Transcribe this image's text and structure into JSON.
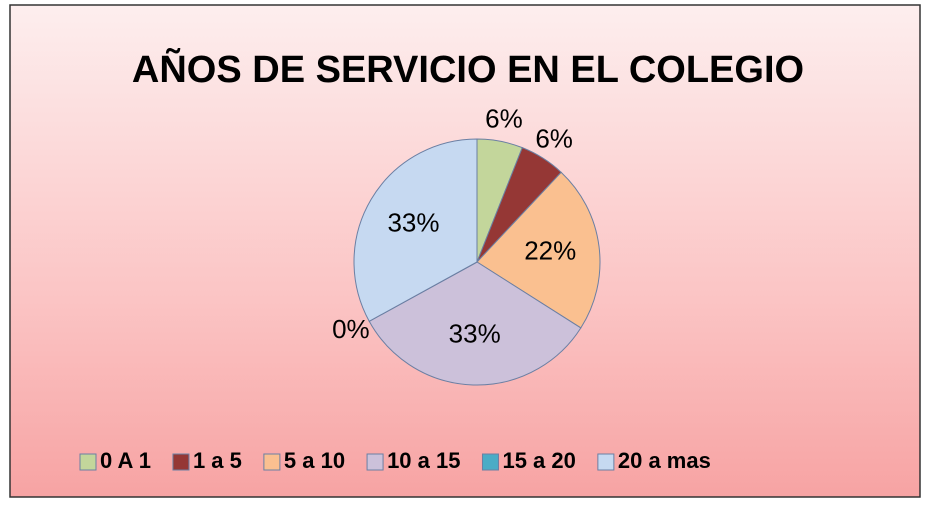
{
  "chart_data": {
    "type": "pie",
    "title": "AÑOS DE SERVICIO EN EL COLEGIO",
    "categories": [
      "0 A 1",
      "1 a 5",
      "5 a 10",
      "10 a 15",
      "15 a 20",
      "20 a mas"
    ],
    "values": [
      6,
      6,
      22,
      33,
      0,
      33
    ],
    "value_labels": [
      "6%",
      "6%",
      "22%",
      "33%",
      "0%",
      "33%"
    ],
    "colors": [
      "#c3d69b",
      "#953735",
      "#fac090",
      "#ccc1da",
      "#4bacc6",
      "#c6d9f1"
    ],
    "legend": "bottom"
  }
}
